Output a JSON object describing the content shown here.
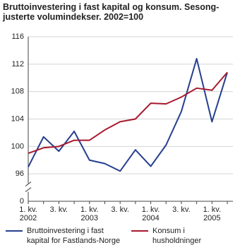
{
  "chart_data": {
    "type": "line",
    "title": "Bruttoinvestering i fast kapital og konsum. Sesong-\njusterte volumindekser. 2002=100",
    "categories": [
      "1. kv.\n2002",
      null,
      "3. kv.",
      null,
      "1. kv.\n2003",
      null,
      "3. kv.",
      null,
      "1. kv.\n2004",
      null,
      "3. kv.",
      null,
      "1. kv.\n2005",
      null
    ],
    "series": [
      {
        "name": "Bruttoinvestering i fast\nkapital for Fastlands-Norge",
        "color": "#263f8f",
        "values": [
          97.0,
          101.4,
          99.3,
          102.2,
          98.0,
          97.5,
          96.4,
          99.5,
          97.1,
          100.2,
          105.1,
          112.8,
          103.6,
          110.8
        ]
      },
      {
        "name": "Konsum i\nhusholdninger",
        "color": "#a8192e",
        "values": [
          99.0,
          99.8,
          100.0,
          100.9,
          100.9,
          102.4,
          103.6,
          104.0,
          106.3,
          106.2,
          107.2,
          108.5,
          108.2,
          110.8
        ]
      }
    ],
    "ylim": [
      0,
      116
    ],
    "yticks": [
      0,
      96,
      100,
      104,
      108,
      112,
      116
    ],
    "ybreak": true,
    "grid": true
  }
}
